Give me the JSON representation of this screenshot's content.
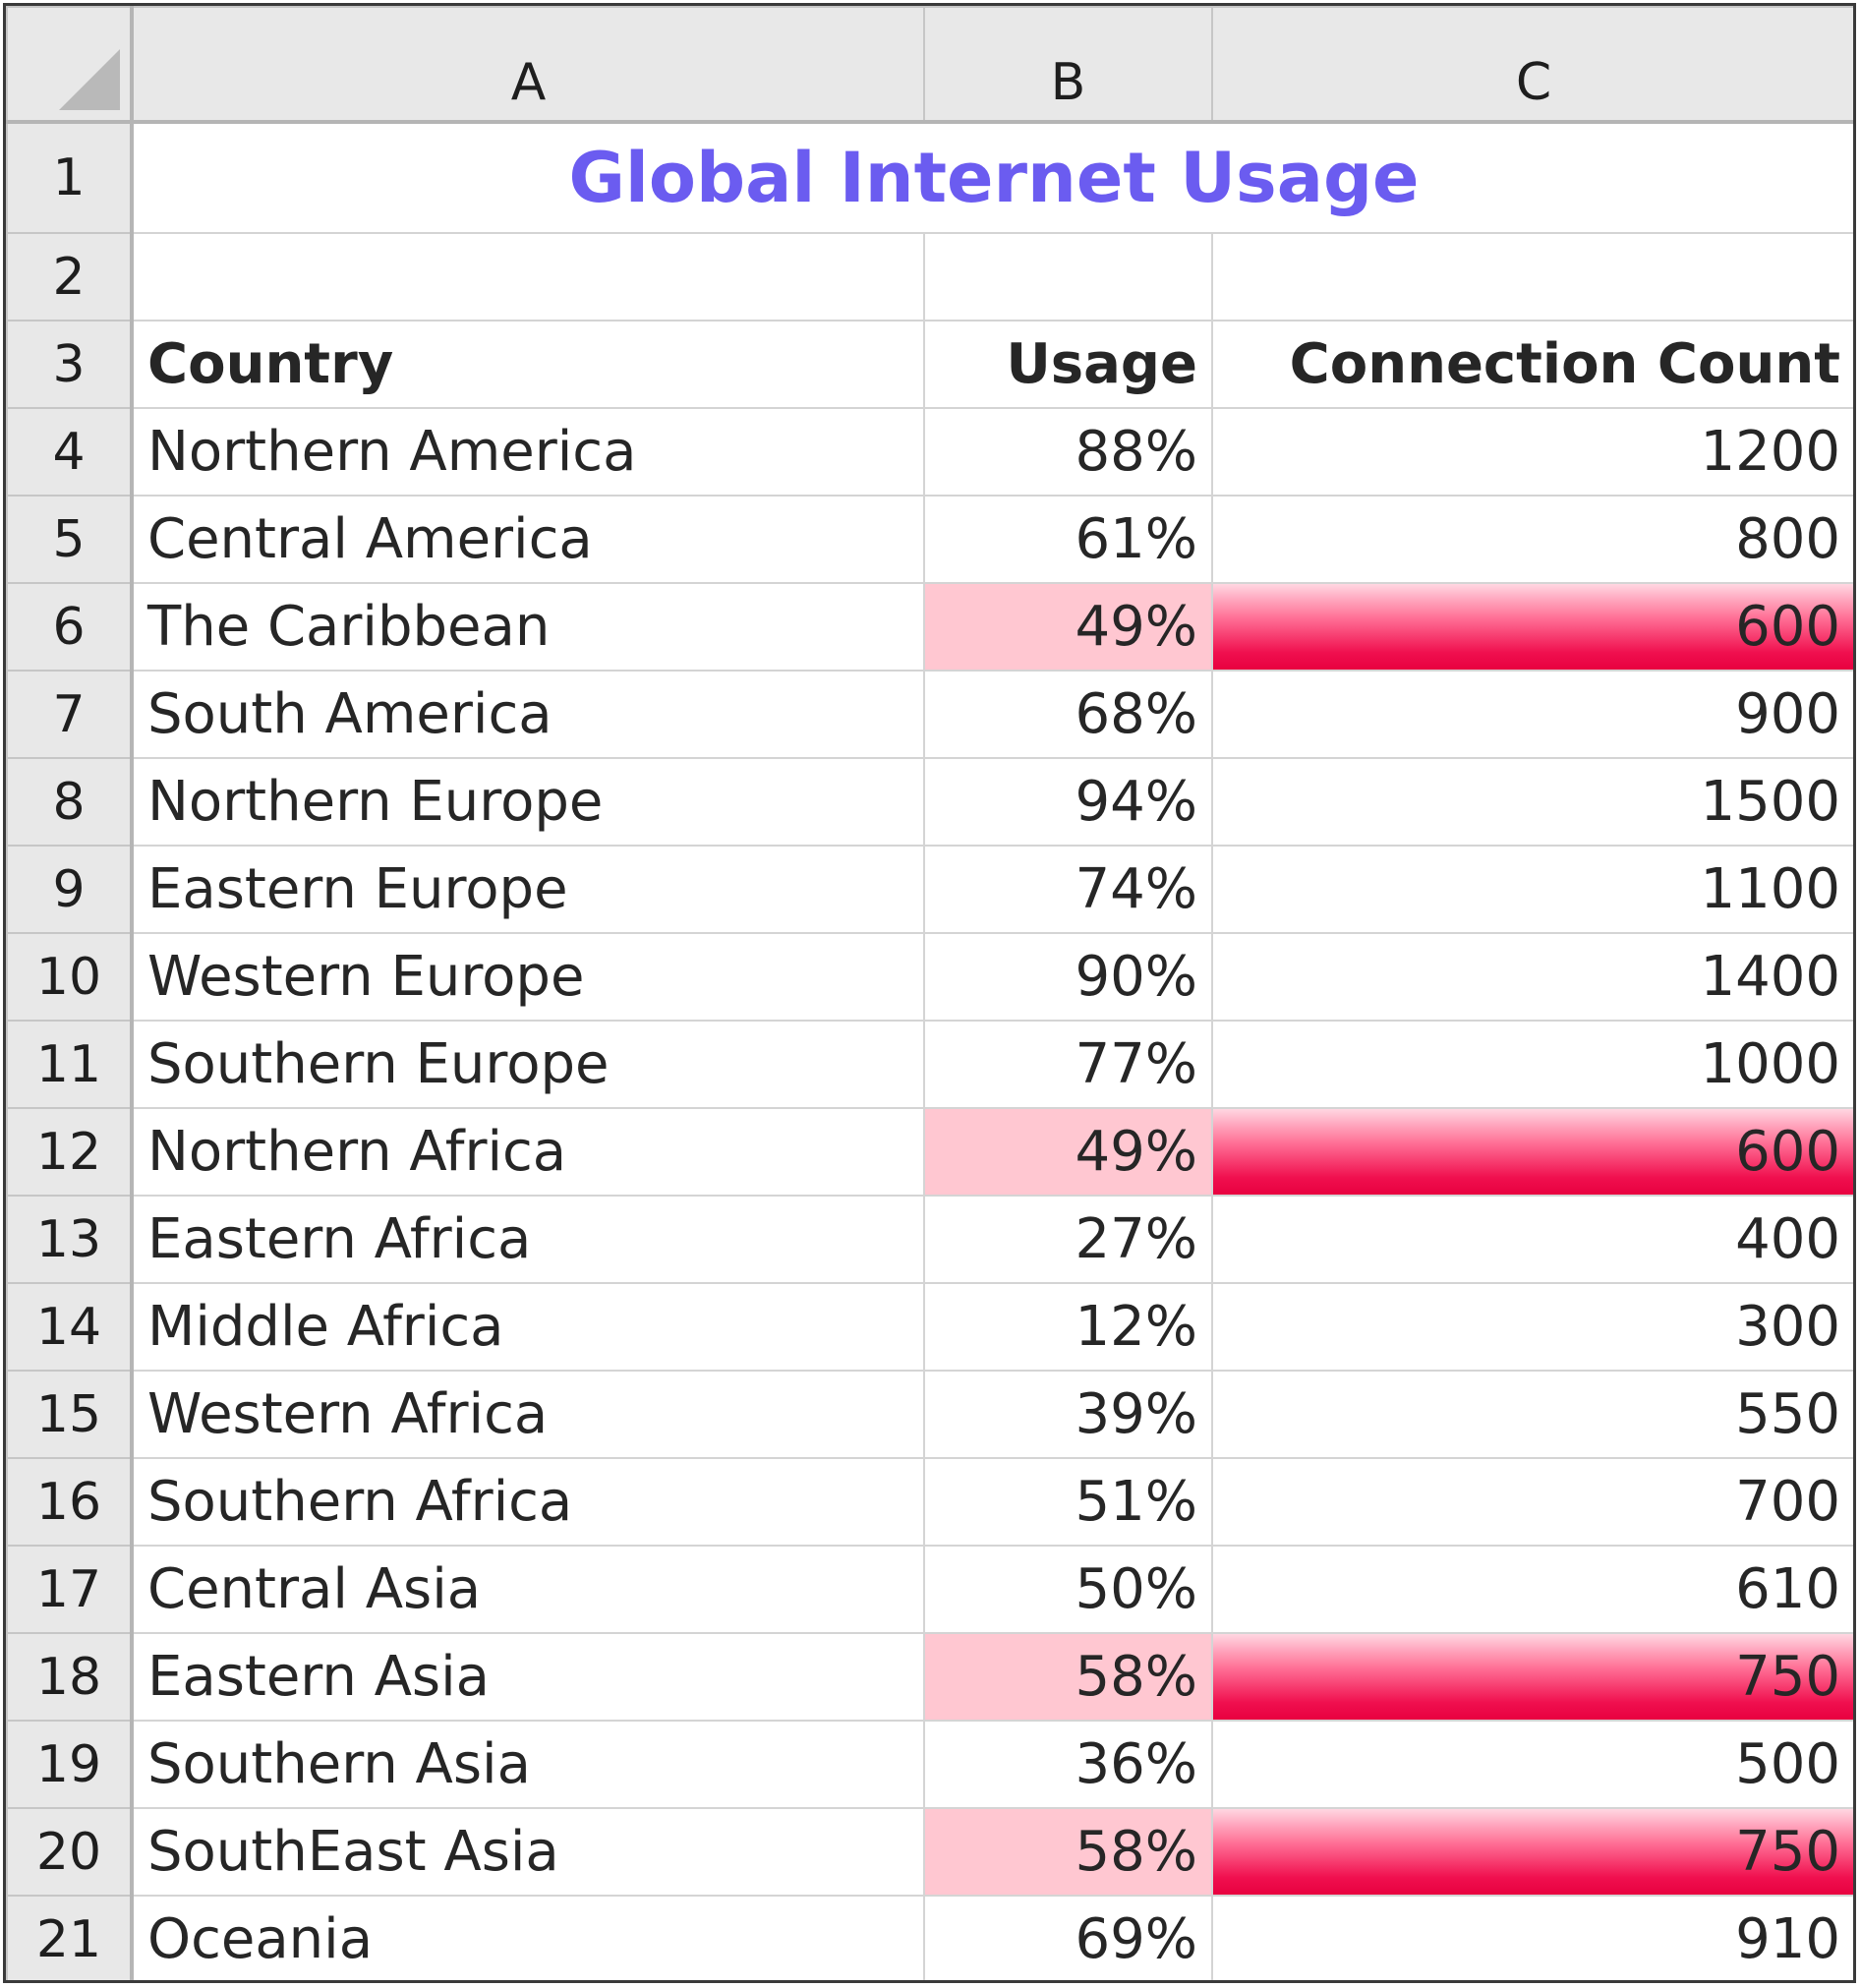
{
  "sheet": {
    "columns": [
      "A",
      "B",
      "C"
    ],
    "row_numbers": [
      "1",
      "2",
      "3",
      "4",
      "5",
      "6",
      "7",
      "8",
      "9",
      "10",
      "11",
      "12",
      "13",
      "14",
      "15",
      "16",
      "17",
      "18",
      "19",
      "20",
      "21"
    ],
    "title": "Global Internet Usage",
    "headers": {
      "country": "Country",
      "usage": "Usage",
      "connection_count": "Connection Count"
    },
    "rows": [
      {
        "country": "Northern America",
        "usage": "88%",
        "count": "1200",
        "highlight": false
      },
      {
        "country": "Central America",
        "usage": "61%",
        "count": "800",
        "highlight": false
      },
      {
        "country": "The Caribbean",
        "usage": "49%",
        "count": "600",
        "highlight": true
      },
      {
        "country": "South America",
        "usage": "68%",
        "count": "900",
        "highlight": false
      },
      {
        "country": "Northern Europe",
        "usage": "94%",
        "count": "1500",
        "highlight": false
      },
      {
        "country": "Eastern Europe",
        "usage": "74%",
        "count": "1100",
        "highlight": false
      },
      {
        "country": "Western Europe",
        "usage": "90%",
        "count": "1400",
        "highlight": false
      },
      {
        "country": "Southern Europe",
        "usage": "77%",
        "count": "1000",
        "highlight": false
      },
      {
        "country": "Northern Africa",
        "usage": "49%",
        "count": "600",
        "highlight": true
      },
      {
        "country": "Eastern Africa",
        "usage": "27%",
        "count": "400",
        "highlight": false
      },
      {
        "country": "Middle Africa",
        "usage": "12%",
        "count": "300",
        "highlight": false
      },
      {
        "country": "Western Africa",
        "usage": "39%",
        "count": "550",
        "highlight": false
      },
      {
        "country": "Southern Africa",
        "usage": "51%",
        "count": "700",
        "highlight": false
      },
      {
        "country": "Central Asia",
        "usage": "50%",
        "count": "610",
        "highlight": false
      },
      {
        "country": "Eastern Asia",
        "usage": "58%",
        "count": "750",
        "highlight": true
      },
      {
        "country": "Southern Asia",
        "usage": "36%",
        "count": "500",
        "highlight": false
      },
      {
        "country": "SouthEast Asia",
        "usage": "58%",
        "count": "750",
        "highlight": true
      },
      {
        "country": "Oceania",
        "usage": "69%",
        "count": "910",
        "highlight": false
      }
    ]
  },
  "colors": {
    "title": "#6b5cf0",
    "usage_highlight_fill": "#ffc7d1",
    "count_highlight_fill": "#e8003f",
    "header_background": "#e8e8e8"
  }
}
